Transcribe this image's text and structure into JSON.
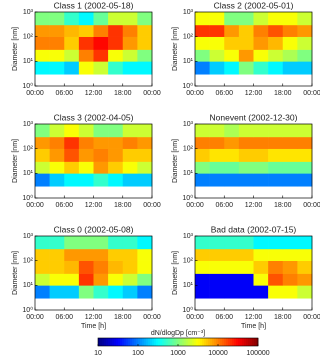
{
  "chart_data": [
    {
      "type": "heatmap",
      "title": "Class 1 (2002-05-18)",
      "ylabel": "Diameter [nm]",
      "log_y": true,
      "xlim": [
        0,
        24
      ],
      "ylim": [
        1,
        1000
      ],
      "xticks": [
        {
          "value": 0,
          "label": "00:00"
        },
        {
          "value": 6,
          "label": "06:00"
        },
        {
          "value": 12,
          "label": "12:00"
        },
        {
          "value": 18,
          "label": "18:00"
        },
        {
          "value": 24,
          "label": "00:00"
        }
      ],
      "yticks": [
        {
          "value": 1,
          "label": "10⁰"
        },
        {
          "value": 10,
          "label": "10¹"
        },
        {
          "value": 100,
          "label": "10²"
        },
        {
          "value": 1000,
          "label": "10³"
        }
      ],
      "x_edges": [
        0,
        3,
        6,
        9,
        12,
        15,
        18,
        21,
        24
      ],
      "y_edges": [
        3,
        10,
        30,
        100,
        300,
        1000
      ],
      "z": [
        [
          300,
          300,
          200,
          3000,
          2000,
          500,
          300,
          300
        ],
        [
          3000,
          3000,
          2000,
          10000,
          20000,
          3000,
          2000,
          1000
        ],
        [
          10000,
          10000,
          5000,
          20000,
          30000,
          20000,
          8000,
          5000
        ],
        [
          8000,
          8000,
          6000,
          5000,
          10000,
          20000,
          10000,
          5000
        ],
        [
          1000,
          1000,
          500,
          300,
          800,
          2000,
          2000,
          1000
        ]
      ]
    },
    {
      "type": "heatmap",
      "title": "Class 2 (2002-05-01)",
      "ylabel": "Diameter [nm]",
      "log_y": true,
      "xlim": [
        0,
        24
      ],
      "ylim": [
        1,
        1000
      ],
      "xticks": [
        {
          "value": 0,
          "label": "00:00"
        },
        {
          "value": 6,
          "label": "06:00"
        },
        {
          "value": 12,
          "label": "12:00"
        },
        {
          "value": 18,
          "label": "18:00"
        },
        {
          "value": 24,
          "label": "00:00"
        }
      ],
      "yticks": [
        {
          "value": 1,
          "label": "10⁰"
        },
        {
          "value": 10,
          "label": "10¹"
        },
        {
          "value": 100,
          "label": "10²"
        },
        {
          "value": 1000,
          "label": "10³"
        }
      ],
      "x_edges": [
        0,
        3,
        6,
        9,
        12,
        15,
        18,
        21,
        24
      ],
      "y_edges": [
        3,
        10,
        30,
        100,
        300,
        1000
      ],
      "z": [
        [
          100,
          200,
          300,
          1000,
          500,
          300,
          200,
          200
        ],
        [
          1000,
          2000,
          3000,
          8000,
          3000,
          2000,
          1500,
          1000
        ],
        [
          3000,
          3000,
          5000,
          5000,
          8000,
          6000,
          3000,
          2000
        ],
        [
          20000,
          20000,
          8000,
          5000,
          10000,
          15000,
          10000,
          8000
        ],
        [
          3000,
          3000,
          1000,
          1000,
          2000,
          3000,
          3000,
          2000
        ]
      ]
    },
    {
      "type": "heatmap",
      "title": "Class 3 (2002-04-05)",
      "ylabel": "Diameter [nm]",
      "log_y": true,
      "xlim": [
        0,
        24
      ],
      "ylim": [
        1,
        1000
      ],
      "xticks": [
        {
          "value": 0,
          "label": "00:00"
        },
        {
          "value": 6,
          "label": "06:00"
        },
        {
          "value": 12,
          "label": "12:00"
        },
        {
          "value": 18,
          "label": "18:00"
        },
        {
          "value": 24,
          "label": "00:00"
        }
      ],
      "yticks": [
        {
          "value": 1,
          "label": "10⁰"
        },
        {
          "value": 10,
          "label": "10¹"
        },
        {
          "value": 100,
          "label": "10²"
        },
        {
          "value": 1000,
          "label": "10³"
        }
      ],
      "x_edges": [
        0,
        3,
        6,
        9,
        12,
        15,
        18,
        21,
        24
      ],
      "y_edges": [
        3,
        10,
        30,
        100,
        300,
        1000
      ],
      "z": [
        [
          100,
          200,
          300,
          300,
          500,
          300,
          200,
          200
        ],
        [
          2000,
          3000,
          5000,
          3000,
          8000,
          5000,
          3000,
          2000
        ],
        [
          5000,
          8000,
          15000,
          8000,
          10000,
          8000,
          5000,
          5000
        ],
        [
          8000,
          10000,
          20000,
          10000,
          8000,
          8000,
          10000,
          8000
        ],
        [
          1000,
          2000,
          3000,
          2000,
          1000,
          1000,
          2000,
          2000
        ]
      ]
    },
    {
      "type": "heatmap",
      "title": "Nonevent (2002-12-30)",
      "ylabel": "Diameter [nm]",
      "log_y": true,
      "xlim": [
        0,
        24
      ],
      "ylim": [
        1,
        1000
      ],
      "xticks": [
        {
          "value": 0,
          "label": "00:00"
        },
        {
          "value": 6,
          "label": "06:00"
        },
        {
          "value": 12,
          "label": "12:00"
        },
        {
          "value": 18,
          "label": "18:00"
        },
        {
          "value": 24,
          "label": "00:00"
        }
      ],
      "yticks": [
        {
          "value": 1,
          "label": "10⁰"
        },
        {
          "value": 10,
          "label": "10¹"
        },
        {
          "value": 100,
          "label": "10²"
        },
        {
          "value": 1000,
          "label": "10³"
        }
      ],
      "x_edges": [
        0,
        3,
        6,
        9,
        12,
        15,
        18,
        21,
        24
      ],
      "y_edges": [
        3,
        10,
        30,
        100,
        300,
        1000
      ],
      "z": [
        [
          100,
          100,
          100,
          100,
          100,
          100,
          100,
          100
        ],
        [
          1000,
          800,
          800,
          1000,
          1000,
          800,
          800,
          800
        ],
        [
          5000,
          4000,
          4000,
          5000,
          5000,
          4000,
          4000,
          4000
        ],
        [
          10000,
          10000,
          8000,
          10000,
          10000,
          10000,
          10000,
          10000
        ],
        [
          2000,
          2000,
          1500,
          2000,
          2000,
          2000,
          2000,
          2000
        ]
      ]
    },
    {
      "type": "heatmap",
      "title": "Class 0 (2002-05-08)",
      "ylabel": "Diameter [nm]",
      "xlabel": "Time [h]",
      "log_y": true,
      "xlim": [
        0,
        24
      ],
      "ylim": [
        1,
        1000
      ],
      "xticks": [
        {
          "value": 0,
          "label": "00:00"
        },
        {
          "value": 6,
          "label": "06:00"
        },
        {
          "value": 12,
          "label": "12:00"
        },
        {
          "value": 18,
          "label": "18:00"
        },
        {
          "value": 24,
          "label": "00:00"
        }
      ],
      "yticks": [
        {
          "value": 1,
          "label": "10⁰"
        },
        {
          "value": 10,
          "label": "10¹"
        },
        {
          "value": 100,
          "label": "10²"
        },
        {
          "value": 1000,
          "label": "10³"
        }
      ],
      "x_edges": [
        0,
        3,
        6,
        9,
        12,
        15,
        18,
        21,
        24
      ],
      "y_edges": [
        3,
        10,
        30,
        100,
        300,
        1000
      ],
      "z": [
        [
          100,
          200,
          200,
          1000,
          500,
          300,
          200,
          100
        ],
        [
          2000,
          3000,
          3000,
          20000,
          8000,
          3000,
          2000,
          1000
        ],
        [
          5000,
          5000,
          6000,
          15000,
          10000,
          6000,
          5000,
          3000
        ],
        [
          5000,
          5000,
          8000,
          8000,
          8000,
          5000,
          5000,
          3000
        ],
        [
          500,
          500,
          1000,
          1000,
          1000,
          500,
          500,
          300
        ]
      ]
    },
    {
      "type": "heatmap",
      "title": "Bad data (2002-07-15)",
      "ylabel": "Diameter [nm]",
      "xlabel": "Time [h]",
      "log_y": true,
      "xlim": [
        0,
        24
      ],
      "ylim": [
        1,
        1000
      ],
      "xticks": [
        {
          "value": 0,
          "label": "00:00"
        },
        {
          "value": 6,
          "label": "06:00"
        },
        {
          "value": 12,
          "label": "12:00"
        },
        {
          "value": 18,
          "label": "18:00"
        },
        {
          "value": 24,
          "label": "00:00"
        }
      ],
      "yticks": [
        {
          "value": 1,
          "label": "10⁰"
        },
        {
          "value": 10,
          "label": "10¹"
        },
        {
          "value": 100,
          "label": "10²"
        },
        {
          "value": 1000,
          "label": "10³"
        }
      ],
      "x_edges": [
        0,
        3,
        6,
        9,
        12,
        15,
        18,
        21,
        24
      ],
      "y_edges": [
        3,
        10,
        30,
        100,
        300,
        1000
      ],
      "z": [
        [
          30,
          30,
          30,
          30,
          30,
          3000,
          3000,
          2000
        ],
        [
          30,
          30,
          30,
          30,
          3000,
          15000,
          10000,
          8000
        ],
        [
          3000,
          3000,
          3000,
          3000,
          5000,
          10000,
          8000,
          5000
        ],
        [
          5000,
          5000,
          5000,
          5000,
          3000,
          3000,
          3000,
          3000
        ],
        [
          500,
          500,
          500,
          500,
          300,
          300,
          300,
          300
        ]
      ]
    }
  ],
  "colorbar": {
    "label": "dN/dlogDp [cm⁻³]",
    "log": true,
    "clim": [
      10,
      100000
    ],
    "cticks": [
      10,
      100,
      1000,
      10000,
      100000
    ],
    "colormap": "jet"
  }
}
